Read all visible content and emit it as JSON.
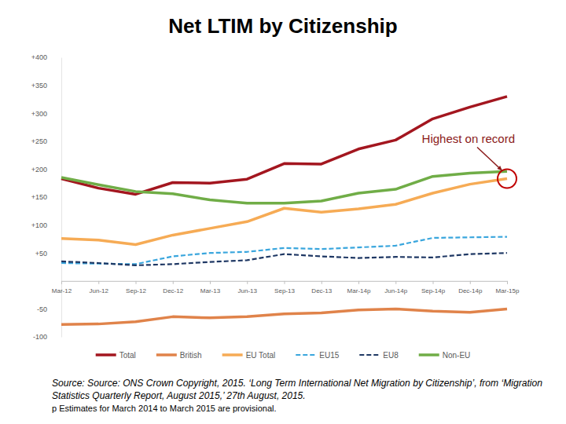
{
  "chart_data": {
    "type": "line",
    "title": "Net LTIM by Citizenship",
    "categories": [
      "Mar-12",
      "Jun-12",
      "Sep-12",
      "Dec-12",
      "Mar-13",
      "Jun-13",
      "Sep-13",
      "Dec-13",
      "Mar-14p",
      "Jun-14p",
      "Sep-14p",
      "Dec-14p",
      "Mar-15p"
    ],
    "series": [
      {
        "name": "Total",
        "color": "#a3161f",
        "line_style": "solid",
        "values": [
          183,
          166,
          155,
          176,
          175,
          182,
          210,
          209,
          236,
          252,
          290,
          311,
          330
        ]
      },
      {
        "name": "British",
        "color": "#e0834a",
        "line_style": "solid",
        "values": [
          -78,
          -77,
          -73,
          -64,
          -66,
          -64,
          -59,
          -57,
          -52,
          -50,
          -54,
          -56,
          -50
        ]
      },
      {
        "name": "EU Total",
        "color": "#f6ab55",
        "line_style": "solid",
        "values": [
          76,
          73,
          65,
          82,
          94,
          106,
          130,
          123,
          129,
          137,
          157,
          173,
          183
        ]
      },
      {
        "name": "EU15",
        "color": "#3aa6dd",
        "line_style": "dashed",
        "values": [
          32,
          31,
          30,
          44,
          50,
          52,
          59,
          57,
          60,
          63,
          77,
          78,
          79
        ]
      },
      {
        "name": "EU8",
        "color": "#1f3864",
        "line_style": "dashed",
        "values": [
          35,
          32,
          28,
          30,
          34,
          37,
          48,
          44,
          41,
          43,
          42,
          48,
          50
        ]
      },
      {
        "name": "Non-EU",
        "color": "#70ad47",
        "line_style": "solid",
        "values": [
          185,
          172,
          160,
          156,
          145,
          139,
          139,
          143,
          157,
          164,
          187,
          193,
          196
        ]
      }
    ],
    "ylim": [
      -100,
      400
    ],
    "yticks": [
      {
        "value": 400,
        "label": "+400"
      },
      {
        "value": 350,
        "label": "+350"
      },
      {
        "value": 300,
        "label": "+300"
      },
      {
        "value": 250,
        "label": "+250"
      },
      {
        "value": 200,
        "label": "+200"
      },
      {
        "value": 150,
        "label": "+150"
      },
      {
        "value": 100,
        "label": "+100"
      },
      {
        "value": 50,
        "label": "+50"
      },
      -50,
      -100
    ],
    "grid": false,
    "legend": "bottom",
    "annotations": [
      {
        "text": "Highest on record",
        "series": "EU Total",
        "x": "Mar-15p"
      }
    ],
    "source": [
      "Source: Source: ONS Crown Copyright, 2015. ‘Long Term International  Net Migration by Citizenship’, from ‘Migration",
      "Statistics Quarterly Report, August 2015,’ 27th August, 2015.",
      "p Estimates for March 2014 to March 2015 are provisional."
    ]
  }
}
